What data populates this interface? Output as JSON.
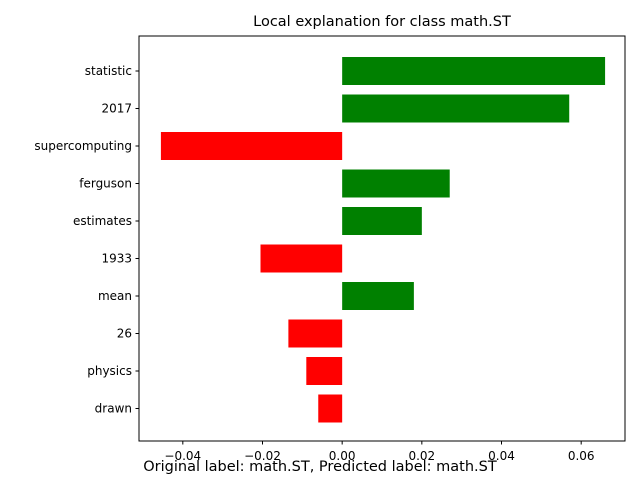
{
  "chart_data": {
    "type": "bar",
    "orientation": "horizontal",
    "title": "Local explanation for class math.ST",
    "categories": [
      "statistic",
      "2017",
      "supercomputing",
      "ferguson",
      "estimates",
      "1933",
      "mean",
      "26",
      "physics",
      "drawn"
    ],
    "values": [
      0.066,
      0.057,
      -0.0455,
      0.027,
      0.02,
      -0.0205,
      0.018,
      -0.0135,
      -0.009,
      -0.006
    ],
    "xlim": [
      -0.051,
      0.071
    ],
    "xticks": [
      -0.04,
      -0.02,
      0.0,
      0.02,
      0.04,
      0.06
    ],
    "xtick_labels": [
      "−0.04",
      "−0.02",
      "0.00",
      "0.02",
      "0.04",
      "0.06"
    ],
    "positive_color": "#008000",
    "negative_color": "#ff0000",
    "grid": false,
    "legend": "none"
  },
  "caption": "Original label: math.ST, Predicted label: math.ST"
}
